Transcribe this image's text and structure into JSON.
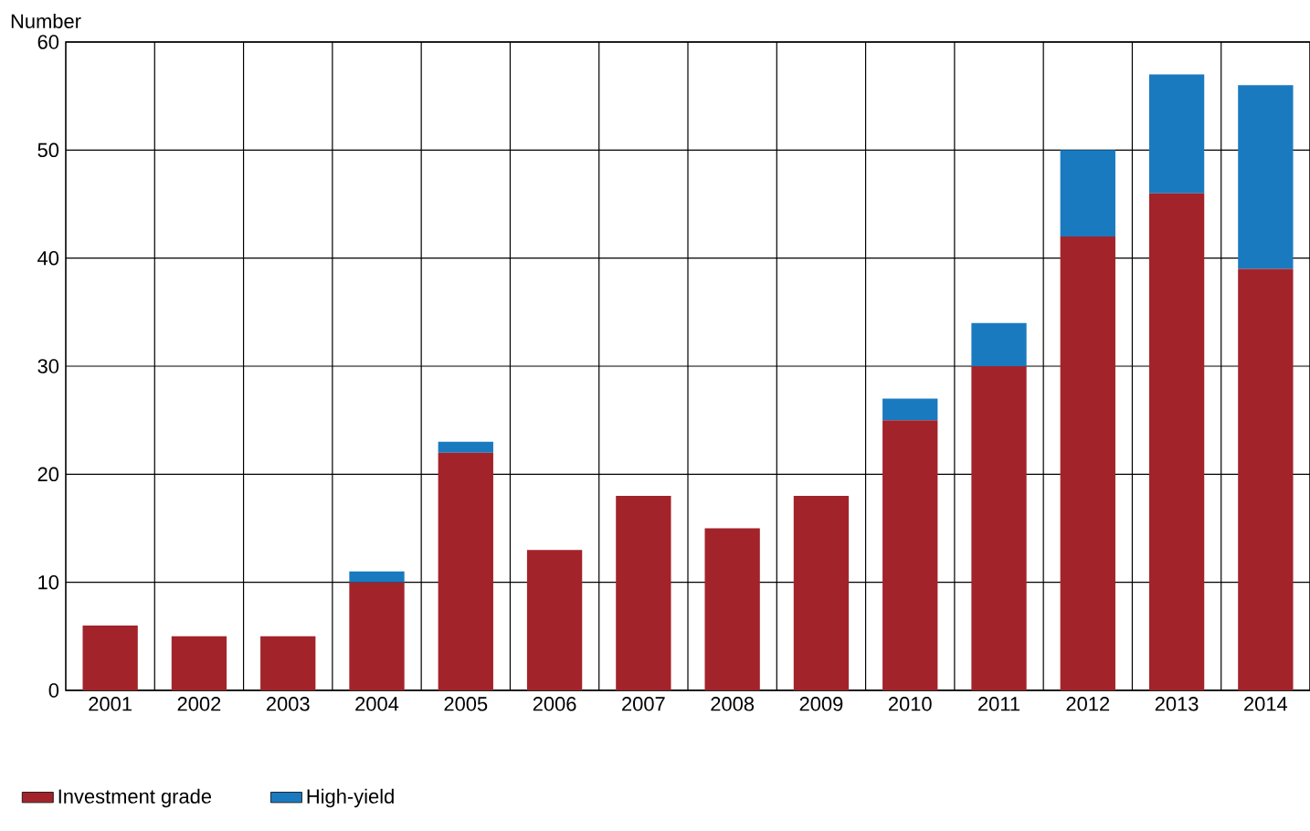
{
  "chart_data": {
    "type": "bar",
    "stacked": true,
    "ylabel": "Number",
    "categories": [
      "2001",
      "2002",
      "2003",
      "2004",
      "2005",
      "2006",
      "2007",
      "2008",
      "2009",
      "2010",
      "2011",
      "2012",
      "2013",
      "2014"
    ],
    "series": [
      {
        "name": "Investment grade",
        "color": "#a3232a",
        "values": [
          6,
          5,
          5,
          10,
          22,
          13,
          18,
          15,
          18,
          25,
          30,
          42,
          46,
          39
        ]
      },
      {
        "name": "High-yield",
        "color": "#1a7abf",
        "values": [
          null,
          null,
          null,
          1,
          1,
          null,
          null,
          null,
          null,
          2,
          4,
          8,
          11,
          17
        ]
      }
    ],
    "ylim": [
      0,
      60
    ],
    "yticks": [
      0,
      10,
      20,
      30,
      40,
      50,
      60
    ],
    "grid": true,
    "legend": "bottom left"
  }
}
